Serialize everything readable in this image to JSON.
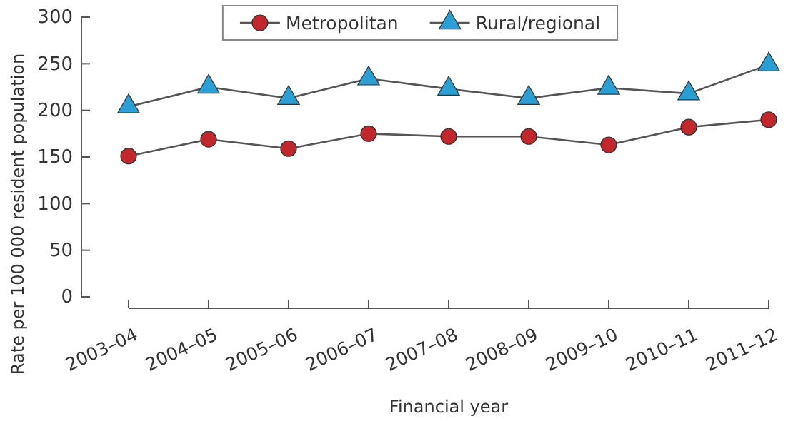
{
  "chart_data": {
    "type": "line",
    "xlabel": "Financial year",
    "ylabel": "Rate per 100 000 resident population",
    "categories": [
      "2003–04",
      "2004–05",
      "2005–06",
      "2006–07",
      "2007–08",
      "2008–09",
      "2009–10",
      "2010–11",
      "2011–12"
    ],
    "series": [
      {
        "name": "Metropolitan",
        "color": "#c1272d",
        "marker": "circle",
        "values": [
          151,
          169,
          159,
          175,
          172,
          172,
          163,
          182,
          190
        ]
      },
      {
        "name": "Rural/regional",
        "color": "#2a9fd6",
        "marker": "triangle",
        "values": [
          204,
          225,
          213,
          234,
          223,
          213,
          224,
          218,
          249
        ]
      }
    ],
    "ylim": [
      0,
      300
    ],
    "yticks": [
      0,
      50,
      100,
      150,
      200,
      250,
      300
    ],
    "grid": false,
    "legend": "top",
    "line_style": "solid"
  }
}
